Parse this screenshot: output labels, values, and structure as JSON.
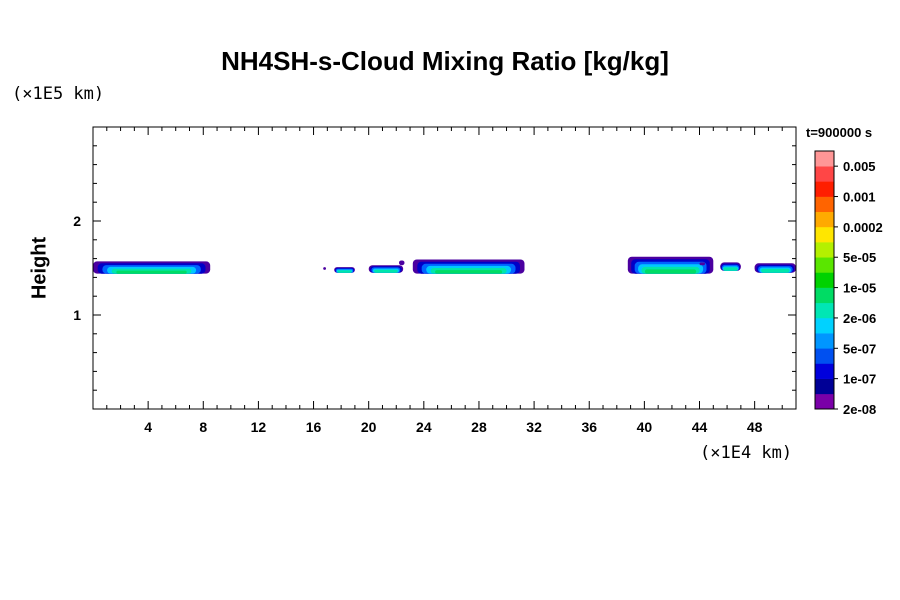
{
  "chart_data": {
    "type": "heatmap",
    "title": "NH4SH-s-Cloud Mixing Ratio [kg/kg]",
    "ylabel": "Height",
    "x_unit": "(×1E4 km)",
    "y_unit": "(×1E5 km)",
    "time_label": "t=900000 s",
    "xlim": [
      0,
      51
    ],
    "ylim": [
      0,
      3
    ],
    "x_ticks": [
      4,
      8,
      12,
      16,
      20,
      24,
      28,
      32,
      36,
      40,
      44,
      48
    ],
    "y_ticks": [
      1,
      2
    ],
    "colorbar": {
      "labels": [
        "0.005",
        "0.001",
        "0.0002",
        "5e-05",
        "1e-05",
        "2e-06",
        "5e-07",
        "1e-07",
        "2e-08"
      ],
      "colors_bottom_to_top": [
        "#7a00a8",
        "#000096",
        "#0000dc",
        "#0050f0",
        "#0096ff",
        "#00d2ff",
        "#00e6b4",
        "#00dc64",
        "#00d200",
        "#5ae600",
        "#b4f000",
        "#ffe600",
        "#ffaa00",
        "#ff6400",
        "#ff1e00",
        "#ff4646",
        "#ff9696"
      ]
    },
    "cloud_patches": [
      {
        "x_start": 0.0,
        "x_end": 8.5,
        "y_bottom": 1.44,
        "y_top": 1.57,
        "peak": "5e-06"
      },
      {
        "x_start": 16.7,
        "x_end": 16.9,
        "y_bottom": 1.48,
        "y_top": 1.51,
        "peak": "2e-08"
      },
      {
        "x_start": 17.5,
        "x_end": 19.0,
        "y_bottom": 1.45,
        "y_top": 1.51,
        "peak": "2e-06"
      },
      {
        "x_start": 20.0,
        "x_end": 22.5,
        "y_bottom": 1.45,
        "y_top": 1.53,
        "peak": "2e-06"
      },
      {
        "x_start": 22.2,
        "x_end": 22.6,
        "y_bottom": 1.53,
        "y_top": 1.58,
        "peak": "2e-08"
      },
      {
        "x_start": 23.2,
        "x_end": 31.3,
        "y_bottom": 1.44,
        "y_top": 1.59,
        "peak": "5e-06"
      },
      {
        "x_start": 38.8,
        "x_end": 45.0,
        "y_bottom": 1.44,
        "y_top": 1.62,
        "peak": "5e-06"
      },
      {
        "x_start": 44.0,
        "x_end": 44.4,
        "y_bottom": 1.53,
        "y_top": 1.56,
        "peak": "2e-08"
      },
      {
        "x_start": 45.5,
        "x_end": 47.0,
        "y_bottom": 1.47,
        "y_top": 1.56,
        "peak": "2e-06"
      },
      {
        "x_start": 48.0,
        "x_end": 51.0,
        "y_bottom": 1.45,
        "y_top": 1.55,
        "peak": "2e-06"
      }
    ]
  }
}
